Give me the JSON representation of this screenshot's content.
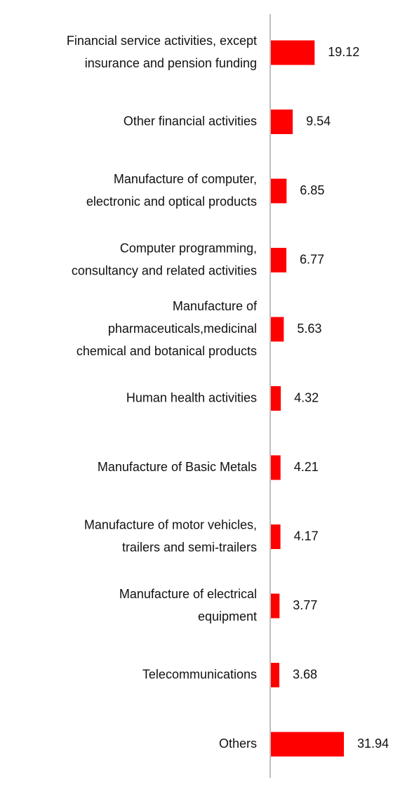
{
  "chart_data": {
    "type": "bar",
    "orientation": "horizontal",
    "title": "",
    "xlabel": "",
    "ylabel": "",
    "categories": [
      [
        "Financial service activities, except",
        "insurance and pension funding"
      ],
      [
        "Other financial activities"
      ],
      [
        "Manufacture of computer,",
        "electronic and optical products"
      ],
      [
        "Computer programming,",
        "consultancy and related activities"
      ],
      [
        "Manufacture of",
        "pharmaceuticals,medicinal",
        "chemical and botanical products"
      ],
      [
        "Human health activities"
      ],
      [
        "Manufacture of Basic Metals"
      ],
      [
        "Manufacture of motor vehicles,",
        "trailers and semi-trailers"
      ],
      [
        "Manufacture of electrical",
        "equipment"
      ],
      [
        "Telecommunications"
      ],
      [
        "Others"
      ]
    ],
    "values": [
      19.12,
      9.54,
      6.85,
      6.77,
      5.63,
      4.32,
      4.21,
      4.17,
      3.77,
      3.68,
      31.94
    ],
    "value_labels": [
      "19.12",
      "9.54",
      "6.85",
      "6.77",
      "5.63",
      "4.32",
      "4.21",
      "4.17",
      "3.77",
      "3.68",
      "31.94"
    ],
    "xlim": [
      0,
      31.94
    ],
    "grid": false,
    "legend": "none",
    "bar_color": "#ff0000",
    "axis_color": "#bfbfbf"
  }
}
